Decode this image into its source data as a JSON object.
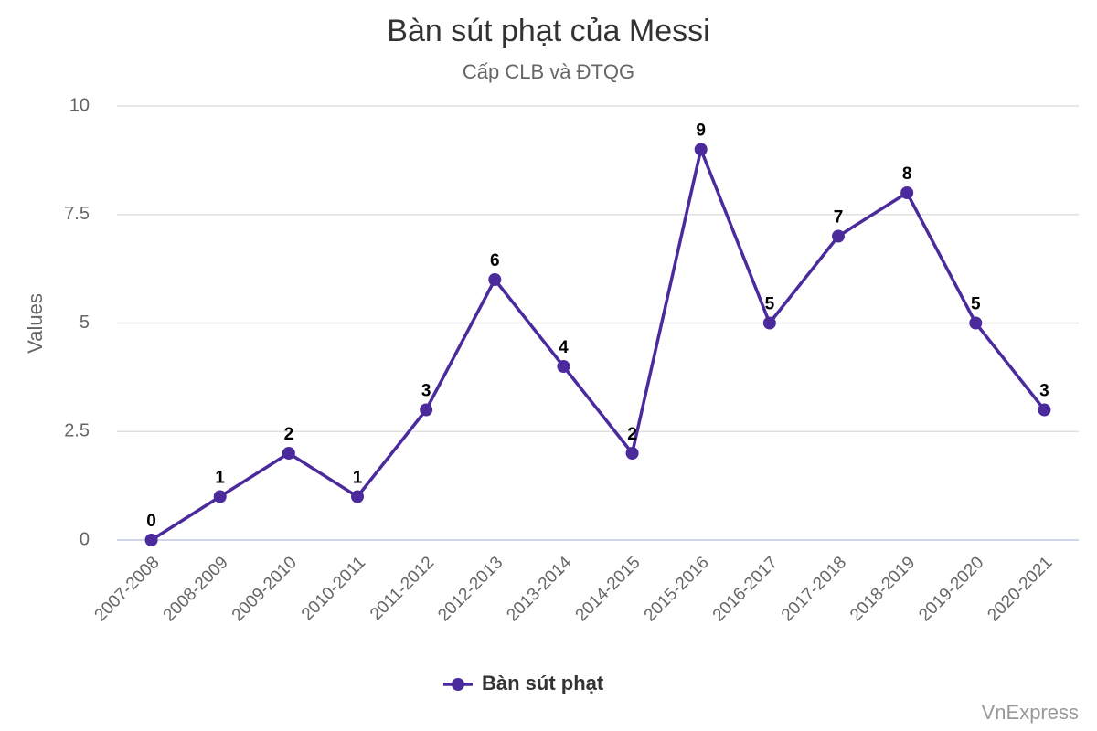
{
  "chart_data": {
    "type": "line",
    "title": "Bàn sút phạt của Messi",
    "subtitle": "Cấp CLB và ĐTQG",
    "y_label": "Values",
    "credit": "VnExpress",
    "categories": [
      "2007-2008",
      "2008-2009",
      "2009-2010",
      "2010-2011",
      "2011-2012",
      "2012-2013",
      "2013-2014",
      "2014-2015",
      "2015-2016",
      "2016-2017",
      "2017-2018",
      "2018-2019",
      "2019-2020",
      "2020-2021"
    ],
    "series": [
      {
        "name": "Bàn sút phạt",
        "color": "#4b2b9c",
        "values": [
          0,
          1,
          2,
          1,
          3,
          6,
          4,
          2,
          9,
          5,
          7,
          8,
          5,
          3
        ]
      }
    ],
    "ylim": [
      0,
      10
    ],
    "yticks": [
      0,
      2.5,
      5,
      7.5,
      10
    ],
    "grid": true,
    "legend": "bottom"
  }
}
